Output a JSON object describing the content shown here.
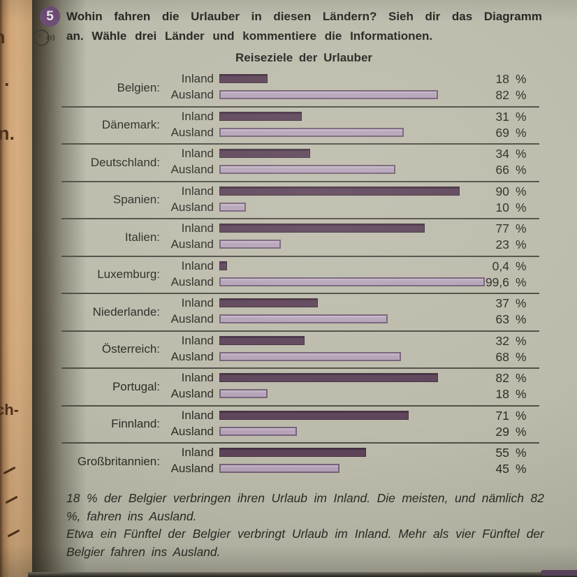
{
  "task": {
    "number": "5",
    "instruction_line1": "Wohin fahren die Urlauber in diesen Ländern? Sieh dir das Diagramm",
    "instruction_line2": "an. Wähle drei Länder und kommentiere die Informationen."
  },
  "chart_data": {
    "type": "bar",
    "orientation": "horizontal",
    "title": "Reiseziele der Urlauber",
    "series": [
      "Inland",
      "Ausland"
    ],
    "unit": "%",
    "xlim": [
      0,
      100
    ],
    "grid": false,
    "rows": [
      {
        "country": "Belgien:",
        "inland": 18,
        "ausland": 82,
        "inland_display": "18",
        "ausland_display": "82"
      },
      {
        "country": "Dänemark:",
        "inland": 31,
        "ausland": 69,
        "inland_display": "31",
        "ausland_display": "69"
      },
      {
        "country": "Deutschland:",
        "inland": 34,
        "ausland": 66,
        "inland_display": "34",
        "ausland_display": "66"
      },
      {
        "country": "Spanien:",
        "inland": 90,
        "ausland": 10,
        "inland_display": "90",
        "ausland_display": "10"
      },
      {
        "country": "Italien:",
        "inland": 77,
        "ausland": 23,
        "inland_display": "77",
        "ausland_display": "23"
      },
      {
        "country": "Luxemburg:",
        "inland": 0.4,
        "ausland": 99.6,
        "inland_display": "0,4",
        "ausland_display": "99,6"
      },
      {
        "country": "Niederlande:",
        "inland": 37,
        "ausland": 63,
        "inland_display": "37",
        "ausland_display": "63"
      },
      {
        "country": "Österreich:",
        "inland": 32,
        "ausland": 68,
        "inland_display": "32",
        "ausland_display": "68"
      },
      {
        "country": "Portugal:",
        "inland": 82,
        "ausland": 18,
        "inland_display": "82",
        "ausland_display": "18"
      },
      {
        "country": "Finnland:",
        "inland": 71,
        "ausland": 29,
        "inland_display": "71",
        "ausland_display": "29"
      },
      {
        "country": "Großbritannien:",
        "inland": 55,
        "ausland": 45,
        "inland_display": "55",
        "ausland_display": "45"
      }
    ],
    "percent_symbol": "%",
    "colors": {
      "inland_bar": "#5e4459",
      "ausland_bar": "#b5a2b8",
      "badge": "#6d4c76"
    }
  },
  "footer": {
    "paragraph1": "18 % der Belgier verbringen ihren Urlaub im Inland. Die meisten, und nämlich 82 %, fahren ins Ausland.",
    "paragraph2": "Etwa ein Fünftel der Belgier verbringt Urlaub im Inland. Mehr als vier Fünftel der Belgier fahren ins Ausland."
  },
  "adjacent_page": {
    "fragments": [
      "n",
      ".",
      "n.",
      "ch-"
    ]
  },
  "icons": {
    "task_number_badge": "circled-5",
    "speaking_icon": "face-speaking"
  }
}
